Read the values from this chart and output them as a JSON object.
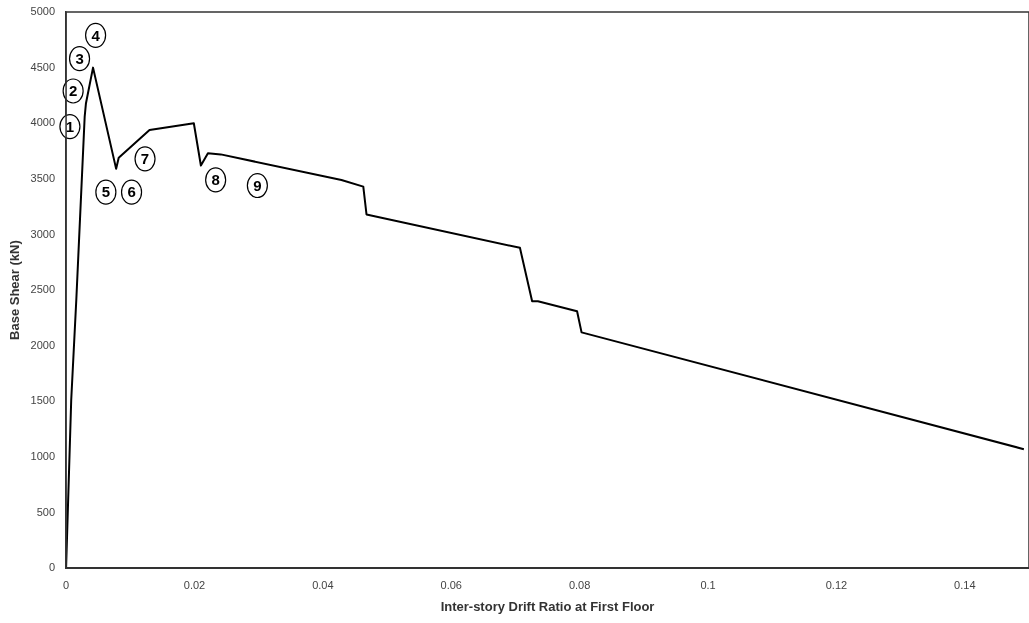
{
  "chart_data": {
    "type": "line",
    "xlabel": "Inter-story Drift Ratio at First Floor",
    "ylabel": "Base Shear (kN)",
    "x": [
      0,
      0.0008,
      0.0016,
      0.0029,
      0.0031,
      0.0042,
      0.0078,
      0.0082,
      0.013,
      0.0199,
      0.021,
      0.0221,
      0.0241,
      0.0429,
      0.0463,
      0.0468,
      0.0707,
      0.0726,
      0.0735,
      0.0796,
      0.0803,
      0.1492
    ],
    "series": [
      {
        "color": "#000000",
        "values": [
          0,
          1510,
          2420,
          4060,
          4180,
          4500,
          3590,
          3690,
          3940,
          4000,
          3620,
          3730,
          3720,
          3490,
          3430,
          3180,
          2880,
          2400,
          2400,
          2310,
          2120,
          1070
        ]
      }
    ],
    "xlim": [
      0,
      0.15
    ],
    "xticks": [
      0,
      0.02,
      0.04,
      0.06,
      0.08,
      0.1,
      0.12,
      0.14
    ],
    "ylim": [
      0,
      5000
    ],
    "yticks": [
      0,
      500,
      1000,
      1500,
      2000,
      2500,
      3000,
      3500,
      4000,
      4500,
      5000
    ],
    "grid": false,
    "legend": false,
    "marker": "none",
    "line_style": "solid",
    "annotations": [
      {
        "text": "1",
        "x": 0.0006,
        "y": 3970
      },
      {
        "text": "2",
        "x": 0.0011,
        "y": 4290
      },
      {
        "text": "3",
        "x": 0.0021,
        "y": 4580
      },
      {
        "text": "4",
        "x": 0.0046,
        "y": 4790
      },
      {
        "text": "5",
        "x": 0.0062,
        "y": 3380
      },
      {
        "text": "6",
        "x": 0.0102,
        "y": 3380
      },
      {
        "text": "7",
        "x": 0.0123,
        "y": 3680
      },
      {
        "text": "8",
        "x": 0.0233,
        "y": 3490
      },
      {
        "text": "9",
        "x": 0.0298,
        "y": 3440
      }
    ]
  }
}
